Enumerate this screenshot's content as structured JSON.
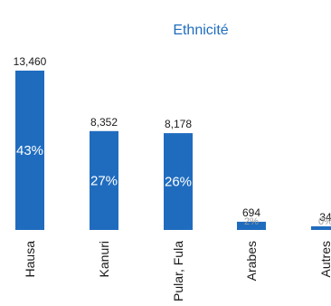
{
  "chart_data": {
    "type": "bar",
    "title": "Ethnicité",
    "categories": [
      "Hausa",
      "Kanuri",
      "Pular, Fula",
      "Arabes",
      "Autres"
    ],
    "values": [
      13460,
      8352,
      8178,
      694,
      34
    ],
    "value_labels": [
      "13,460",
      "8,352",
      "8,178",
      "694",
      "34"
    ],
    "percent_labels": [
      "43%",
      "27%",
      "26%",
      "2%",
      "0%"
    ],
    "xlabel": "",
    "ylabel": "",
    "grid": false,
    "legend": "none",
    "colors": {
      "bar": "#1f6cbf",
      "title": "#1f6cbf",
      "text": "#1a1a1a",
      "pct_inside": "#ffffff",
      "pct_outside": "#9a9a9a"
    }
  }
}
